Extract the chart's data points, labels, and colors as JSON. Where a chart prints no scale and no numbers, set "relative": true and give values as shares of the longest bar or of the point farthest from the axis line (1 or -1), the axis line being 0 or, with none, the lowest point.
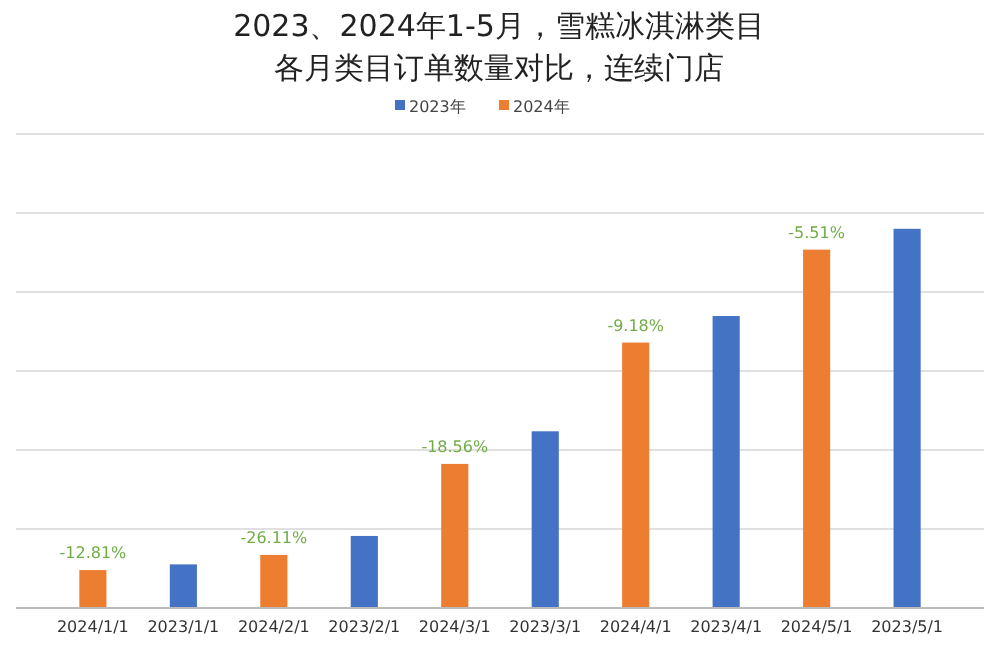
{
  "chart_data": {
    "type": "bar",
    "title": "2023、2024年1-5月，雪糕冰淇淋类目",
    "subtitle": "各月类目订单数量对比，连续门店",
    "relative": true,
    "grid": true,
    "legend": "top",
    "categories": [
      "2024/1/1",
      "2023/1/1",
      "2024/2/1",
      "2023/2/1",
      "2024/3/1",
      "2023/3/1",
      "2024/4/1",
      "2023/4/1",
      "2024/5/1",
      "2023/5/1"
    ],
    "series": [
      {
        "name": "2023年",
        "color": "#4472c4",
        "values": [
          null,
          0.115,
          null,
          0.19,
          null,
          0.466,
          null,
          0.77,
          null,
          1
        ]
      },
      {
        "name": "2024年",
        "color": "#ed7d31",
        "values": [
          0.1,
          null,
          0.14,
          null,
          0.38,
          null,
          0.7,
          null,
          0.945,
          null
        ]
      }
    ],
    "annotations": [
      {
        "text": "-12.81%",
        "x": "2024/1/1",
        "y": 0.1
      },
      {
        "text": "-26.11%",
        "x": "2024/2/1",
        "y": 0.14
      },
      {
        "text": "-18.56%",
        "x": "2024/3/1",
        "y": 0.38
      },
      {
        "text": "-9.18%",
        "x": "2024/4/1",
        "y": 0.7
      },
      {
        "text": "-5.51%",
        "x": "2024/5/1",
        "y": 0.945
      }
    ]
  }
}
